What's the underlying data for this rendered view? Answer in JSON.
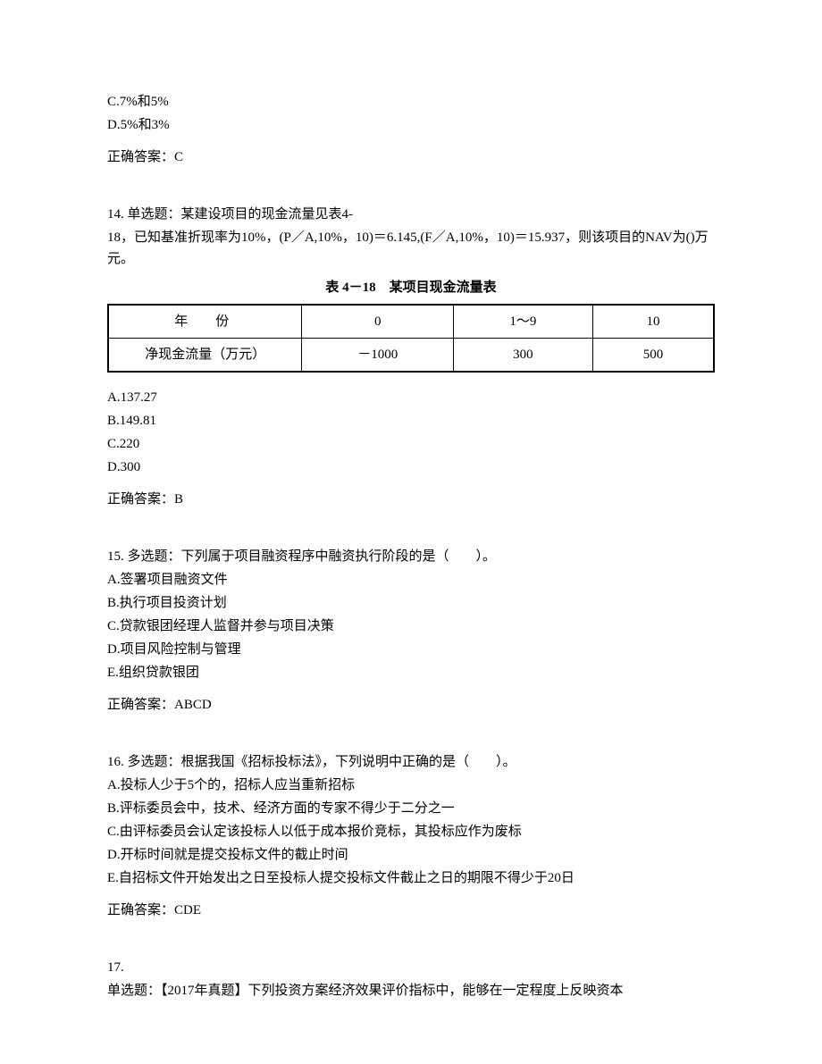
{
  "q13_tail": {
    "optionC": "C.7%和5%",
    "optionD": "D.5%和3%",
    "answer": "正确答案：C"
  },
  "q14": {
    "stemLine1": "14. 单选题：某建设项目的现金流量见表4-",
    "stemLine2": "18，已知基准折现率为10%，(P／A,10%，10)＝6.145,(F／A,10%，10)＝15.937，则该项目的NAV为()万元。",
    "tableTitle": "表 4－18　某项目现金流量表",
    "table": {
      "row1": {
        "c1": "年　份",
        "c2": "0",
        "c3": "1～9",
        "c4": "10"
      },
      "row2": {
        "c1": "净现金流量（万元）",
        "c2": "－1000",
        "c3": "300",
        "c4": "500"
      }
    },
    "optionA": "A.137.27",
    "optionB": "B.149.81",
    "optionC": "C.220",
    "optionD": "D.300",
    "answer": "正确答案：B"
  },
  "q15": {
    "stem": "15. 多选题：下列属于项目融资程序中融资执行阶段的是（　　）。",
    "optionA": "A.签署项目融资文件",
    "optionB": "B.执行项目投资计划",
    "optionC": "C.贷款银团经理人监督并参与项目决策",
    "optionD": "D.项目风险控制与管理",
    "optionE": "E.组织贷款银团",
    "answer": "正确答案：ABCD"
  },
  "q16": {
    "stem": "16. 多选题：根据我国《招标投标法》，下列说明中正确的是（　　）。",
    "optionA": "A.投标人少于5个的，招标人应当重新招标",
    "optionB": "B.评标委员会中，技术、经济方面的专家不得少于二分之一",
    "optionC": "C.由评标委员会认定该投标人以低于成本报价竞标，其投标应作为废标",
    "optionD": "D.开标时间就是提交投标文件的截止时间",
    "optionE": "E.自招标文件开始发出之日至投标人提交投标文件截止之日的期限不得少于20日",
    "answer": "正确答案：CDE"
  },
  "q17": {
    "line1": "17.",
    "line2": "单选题：【2017年真题】下列投资方案经济效果评价指标中，能够在一定程度上反映资本"
  }
}
